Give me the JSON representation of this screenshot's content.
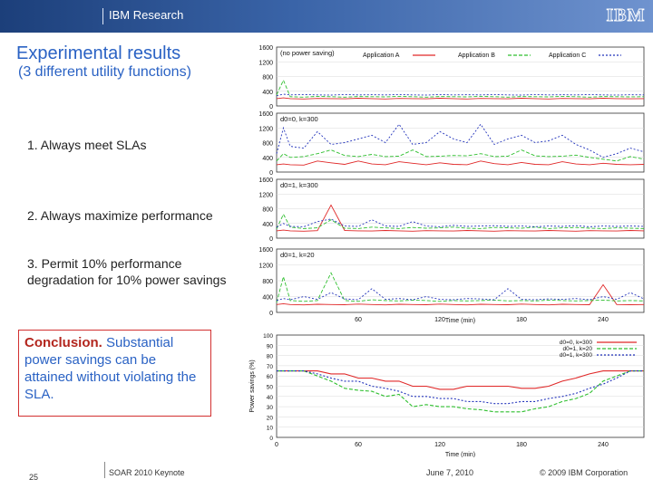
{
  "header": {
    "title": "IBM Research",
    "logo": "IBM"
  },
  "slide": {
    "title": "Experimental results",
    "subtitle": "(3 different utility functions)",
    "points": [
      "1. Always meet SLAs",
      "2. Always maximize performance",
      "3. Permit 10% performance degradation for 10% power savings"
    ],
    "conclusion_label": "Conclusion.",
    "conclusion_text": "Substantial power savings can be attained without violating the SLA."
  },
  "footer": {
    "page": "25",
    "event": "SOAR 2010 Keynote",
    "date": "June 7, 2010",
    "copyright": "© 2009 IBM Corporation"
  },
  "colors": {
    "app_a": "#e02828",
    "app_b": "#2fbf2f",
    "app_c": "#2233bb",
    "title": "#2a62c4",
    "conclusion_border": "#d23030"
  },
  "chart_data": [
    {
      "type": "line",
      "title": "(no power saving)",
      "ylabel": "",
      "xlabel": "",
      "ylim": [
        0,
        1600
      ],
      "xlim": [
        0,
        270
      ],
      "yticks": [
        "1600",
        "1200",
        "800",
        "400",
        "0"
      ],
      "series": [
        {
          "name": "Application A",
          "x": [
            0,
            5,
            10,
            20,
            30,
            40,
            50,
            60,
            70,
            80,
            90,
            100,
            110,
            120,
            130,
            140,
            150,
            160,
            170,
            180,
            190,
            200,
            210,
            220,
            230,
            240,
            250,
            260,
            270
          ],
          "values": [
            200,
            220,
            200,
            190,
            205,
            200,
            195,
            210,
            200,
            190,
            205,
            200,
            195,
            210,
            200,
            190,
            205,
            200,
            195,
            210,
            200,
            190,
            205,
            200,
            195,
            210,
            200,
            195,
            200
          ]
        },
        {
          "name": "Application B",
          "x": [
            0,
            5,
            10,
            20,
            30,
            40,
            50,
            60,
            70,
            80,
            90,
            100,
            110,
            120,
            130,
            140,
            150,
            160,
            170,
            180,
            190,
            200,
            210,
            220,
            230,
            240,
            250,
            260,
            270
          ],
          "values": [
            300,
            700,
            250,
            240,
            260,
            250,
            240,
            255,
            250,
            245,
            260,
            250,
            240,
            255,
            250,
            245,
            260,
            250,
            240,
            255,
            250,
            245,
            260,
            250,
            240,
            255,
            250,
            245,
            250
          ]
        },
        {
          "name": "Application C",
          "x": [
            0,
            5,
            10,
            20,
            30,
            40,
            50,
            60,
            70,
            80,
            90,
            100,
            110,
            120,
            130,
            140,
            150,
            160,
            170,
            180,
            190,
            200,
            210,
            220,
            230,
            240,
            250,
            260,
            270
          ],
          "values": [
            280,
            320,
            300,
            310,
            300,
            295,
            310,
            300,
            305,
            300,
            310,
            300,
            295,
            310,
            300,
            305,
            300,
            310,
            300,
            295,
            310,
            300,
            305,
            300,
            310,
            300,
            295,
            305,
            300
          ]
        }
      ]
    },
    {
      "type": "line",
      "title": "d0=0, k=300",
      "ylim": [
        0,
        1600
      ],
      "xlim": [
        0,
        270
      ],
      "yticks": [
        "1600",
        "1200",
        "800",
        "400",
        "0"
      ],
      "series": [
        {
          "name": "Application A",
          "x": [
            0,
            5,
            10,
            20,
            30,
            40,
            50,
            60,
            70,
            80,
            90,
            100,
            110,
            120,
            130,
            140,
            150,
            160,
            170,
            180,
            190,
            200,
            210,
            220,
            230,
            240,
            250,
            260,
            270
          ],
          "values": [
            200,
            220,
            200,
            190,
            300,
            250,
            210,
            300,
            220,
            200,
            280,
            240,
            200,
            250,
            210,
            200,
            300,
            230,
            200,
            260,
            210,
            200,
            280,
            220,
            200,
            240,
            210,
            200,
            210
          ]
        },
        {
          "name": "Application B",
          "x": [
            0,
            5,
            10,
            20,
            30,
            40,
            50,
            60,
            70,
            80,
            90,
            100,
            110,
            120,
            130,
            140,
            150,
            160,
            170,
            180,
            190,
            200,
            210,
            220,
            230,
            240,
            250,
            260,
            270
          ],
          "values": [
            300,
            500,
            400,
            420,
            500,
            600,
            450,
            420,
            480,
            420,
            430,
            600,
            420,
            430,
            450,
            440,
            500,
            420,
            430,
            600,
            440,
            420,
            430,
            460,
            400,
            350,
            300,
            420,
            350
          ]
        },
        {
          "name": "Application C",
          "x": [
            0,
            5,
            10,
            20,
            30,
            40,
            50,
            60,
            70,
            80,
            90,
            100,
            110,
            120,
            130,
            140,
            150,
            160,
            170,
            180,
            190,
            200,
            210,
            220,
            230,
            240,
            250,
            260,
            270
          ],
          "values": [
            500,
            1200,
            700,
            650,
            1100,
            750,
            800,
            900,
            1000,
            800,
            1300,
            750,
            800,
            1100,
            900,
            800,
            1300,
            750,
            900,
            1000,
            800,
            850,
            1000,
            750,
            600,
            400,
            500,
            650,
            550
          ]
        }
      ]
    },
    {
      "type": "line",
      "title": "d0=1, k=300",
      "ylim": [
        0,
        1600
      ],
      "xlim": [
        0,
        270
      ],
      "yticks": [
        "1600",
        "1200",
        "800",
        "400",
        "0"
      ],
      "series": [
        {
          "name": "Application A",
          "x": [
            0,
            5,
            10,
            20,
            30,
            40,
            50,
            60,
            70,
            80,
            90,
            100,
            110,
            120,
            130,
            140,
            150,
            160,
            170,
            180,
            190,
            200,
            210,
            220,
            230,
            240,
            250,
            260,
            270
          ],
          "values": [
            200,
            220,
            200,
            190,
            205,
            900,
            210,
            200,
            195,
            210,
            200,
            190,
            205,
            200,
            195,
            210,
            200,
            190,
            205,
            200,
            195,
            210,
            200,
            190,
            205,
            200,
            195,
            210,
            200
          ]
        },
        {
          "name": "Application B",
          "x": [
            0,
            5,
            10,
            20,
            30,
            40,
            50,
            60,
            70,
            80,
            90,
            100,
            110,
            120,
            130,
            140,
            150,
            160,
            170,
            180,
            190,
            200,
            210,
            220,
            230,
            240,
            250,
            260,
            270
          ],
          "values": [
            250,
            650,
            300,
            260,
            280,
            500,
            270,
            260,
            300,
            280,
            260,
            290,
            270,
            280,
            300,
            270,
            260,
            290,
            280,
            270,
            300,
            260,
            280,
            290,
            270,
            260,
            280,
            270,
            260
          ]
        },
        {
          "name": "Application C",
          "x": [
            0,
            5,
            10,
            20,
            30,
            40,
            50,
            60,
            70,
            80,
            90,
            100,
            110,
            120,
            130,
            140,
            150,
            160,
            170,
            180,
            190,
            200,
            210,
            220,
            230,
            240,
            250,
            260,
            270
          ],
          "values": [
            300,
            400,
            320,
            310,
            450,
            520,
            330,
            320,
            500,
            330,
            320,
            450,
            330,
            310,
            350,
            320,
            330,
            340,
            320,
            330,
            310,
            330,
            320,
            340,
            310,
            330,
            320,
            330,
            320
          ]
        }
      ]
    },
    {
      "type": "line",
      "title": "d0=1, k=20",
      "ylim": [
        0,
        1600
      ],
      "xlim": [
        0,
        270
      ],
      "yticks": [
        "1600",
        "1200",
        "800",
        "400",
        "0"
      ],
      "xticks": [
        "60",
        "120",
        "180",
        "240"
      ],
      "xlabel": "Time (min)",
      "series": [
        {
          "name": "Application A",
          "x": [
            0,
            5,
            10,
            20,
            30,
            40,
            50,
            60,
            70,
            80,
            90,
            100,
            110,
            120,
            130,
            140,
            150,
            160,
            170,
            180,
            190,
            200,
            210,
            220,
            230,
            240,
            250,
            260,
            270
          ],
          "values": [
            200,
            220,
            200,
            190,
            205,
            200,
            195,
            210,
            200,
            190,
            205,
            200,
            195,
            210,
            200,
            190,
            205,
            200,
            195,
            210,
            200,
            190,
            205,
            200,
            195,
            700,
            200,
            195,
            200
          ]
        },
        {
          "name": "Application B",
          "x": [
            0,
            5,
            10,
            20,
            30,
            40,
            50,
            60,
            70,
            80,
            90,
            100,
            110,
            120,
            130,
            140,
            150,
            160,
            170,
            180,
            190,
            200,
            210,
            220,
            230,
            240,
            250,
            260,
            270
          ],
          "values": [
            250,
            900,
            300,
            280,
            300,
            1000,
            300,
            280,
            320,
            300,
            290,
            310,
            300,
            280,
            300,
            290,
            300,
            310,
            290,
            300,
            290,
            310,
            300,
            290,
            300,
            310,
            290,
            300,
            290
          ]
        },
        {
          "name": "Application C",
          "x": [
            0,
            5,
            10,
            20,
            30,
            40,
            50,
            60,
            70,
            80,
            90,
            100,
            110,
            120,
            130,
            140,
            150,
            160,
            170,
            180,
            190,
            200,
            210,
            220,
            230,
            240,
            250,
            260,
            270
          ],
          "values": [
            300,
            350,
            320,
            400,
            330,
            500,
            340,
            320,
            600,
            330,
            350,
            320,
            400,
            330,
            320,
            350,
            340,
            320,
            600,
            330,
            320,
            340,
            330,
            350,
            320,
            400,
            330,
            500,
            340
          ]
        }
      ]
    },
    {
      "type": "line",
      "title": "",
      "ylabel": "Power savings (%)",
      "xlabel": "Time (min)",
      "ylim": [
        0,
        100
      ],
      "xlim": [
        0,
        270
      ],
      "yticks": [
        "100",
        "90",
        "80",
        "70",
        "60",
        "50",
        "40",
        "30",
        "20",
        "10",
        "0"
      ],
      "xticks": [
        "0",
        "60",
        "120",
        "180",
        "240"
      ],
      "series": [
        {
          "name": "d0=0, k=300",
          "x": [
            0,
            10,
            20,
            30,
            40,
            50,
            60,
            70,
            80,
            90,
            100,
            110,
            120,
            130,
            140,
            150,
            160,
            170,
            180,
            190,
            200,
            210,
            220,
            230,
            240,
            250,
            260,
            270
          ],
          "values": [
            65,
            65,
            65,
            65,
            62,
            62,
            58,
            58,
            55,
            55,
            50,
            50,
            47,
            47,
            50,
            50,
            50,
            50,
            48,
            48,
            50,
            55,
            58,
            62,
            65,
            65,
            65,
            65
          ]
        },
        {
          "name": "d0=1, k=20",
          "x": [
            0,
            10,
            20,
            30,
            40,
            50,
            60,
            70,
            80,
            90,
            100,
            110,
            120,
            130,
            140,
            150,
            160,
            170,
            180,
            190,
            200,
            210,
            220,
            230,
            240,
            250,
            260,
            270
          ],
          "values": [
            65,
            65,
            65,
            60,
            55,
            48,
            46,
            45,
            40,
            42,
            30,
            32,
            30,
            30,
            28,
            27,
            25,
            25,
            25,
            28,
            30,
            35,
            38,
            43,
            55,
            60,
            65,
            65
          ]
        },
        {
          "name": "d0=1, k=300",
          "x": [
            0,
            10,
            20,
            30,
            40,
            50,
            60,
            70,
            80,
            90,
            100,
            110,
            120,
            130,
            140,
            150,
            160,
            170,
            180,
            190,
            200,
            210,
            220,
            230,
            240,
            250,
            260,
            270
          ],
          "values": [
            65,
            65,
            65,
            62,
            58,
            55,
            55,
            50,
            48,
            45,
            40,
            40,
            38,
            38,
            35,
            35,
            33,
            33,
            35,
            35,
            38,
            40,
            43,
            48,
            52,
            58,
            65,
            65
          ]
        }
      ]
    }
  ]
}
